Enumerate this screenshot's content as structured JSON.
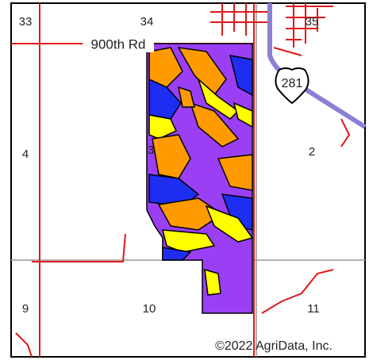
{
  "map": {
    "sections": [
      "33",
      "34",
      "35",
      "4",
      "3",
      "2",
      "9",
      "10",
      "11"
    ],
    "road_label": "900th Rd",
    "highway_shield": "281",
    "copyright": "©2022 AgriData, Inc."
  }
}
